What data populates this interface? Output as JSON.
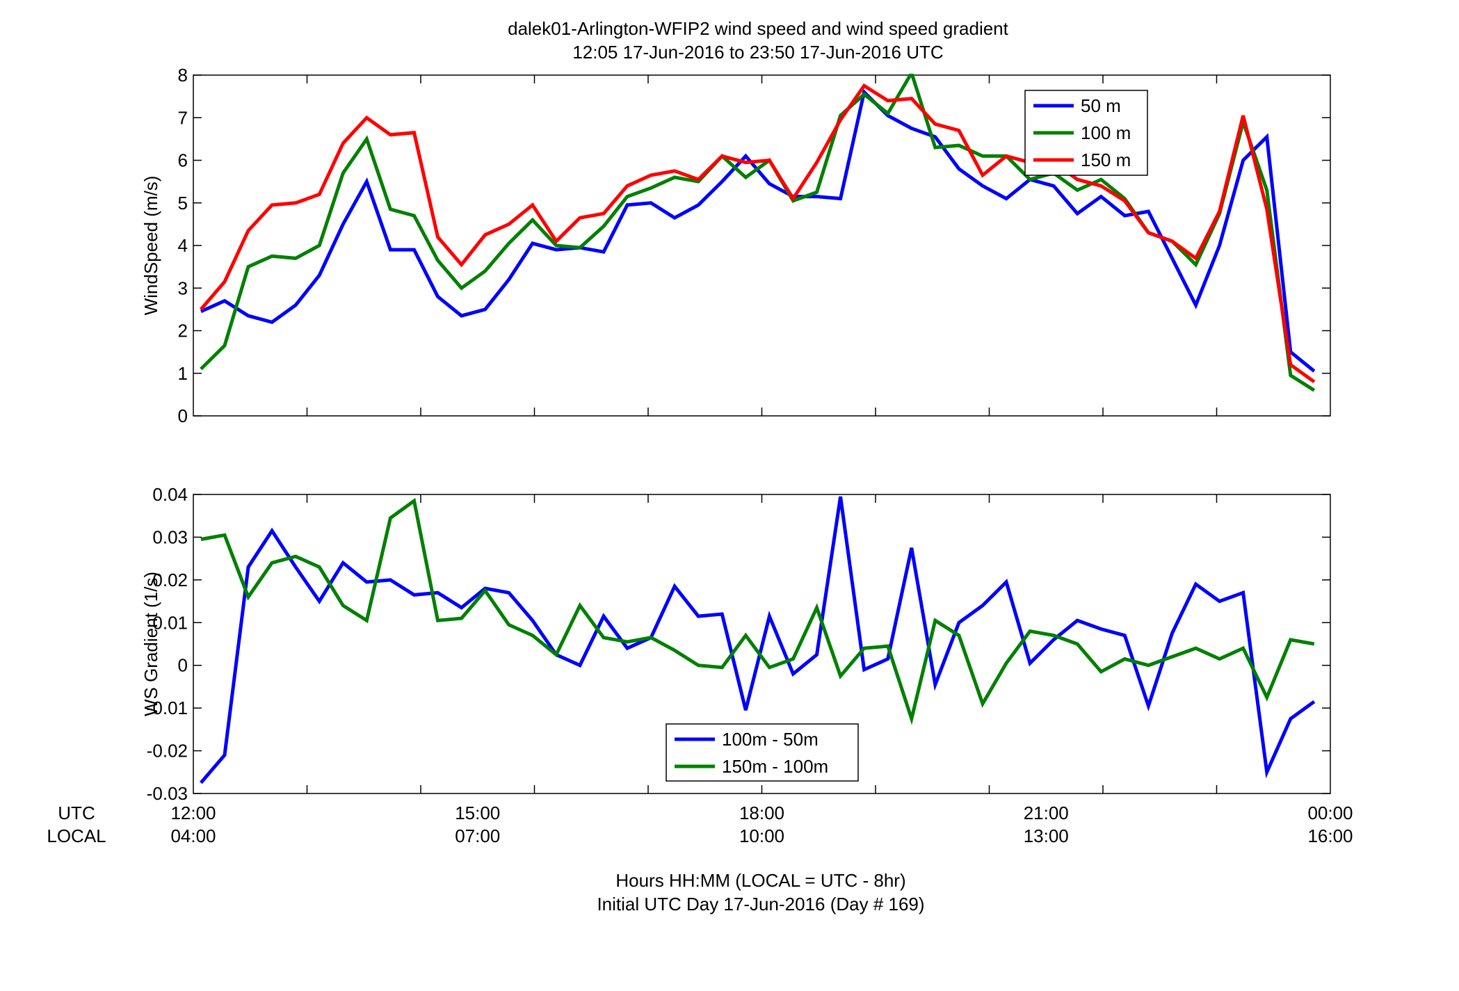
{
  "figure": {
    "title": "dalek01-Arlington-WFIP2  wind speed and wind speed gradient",
    "subtitle": "12:05 17-Jun-2016 to 23:50 17-Jun-2016  UTC",
    "row_label_utc": "UTC",
    "row_label_local": "LOCAL",
    "xlabel_line1": "Hours HH:MM  (LOCAL = UTC - 8hr)",
    "xlabel_line2": "Initial UTC Day 17-Jun-2016 (Day # 169)",
    "utc_ticks": [
      "12:00",
      "15:00",
      "18:00",
      "21:00",
      "00:00"
    ],
    "local_ticks": [
      "04:00",
      "07:00",
      "10:00",
      "13:00",
      "16:00"
    ]
  },
  "chart_data": [
    {
      "type": "line",
      "ylabel": "WindSpeed (m/s)",
      "xlim": [
        12.0,
        24.0
      ],
      "ylim": [
        0,
        8
      ],
      "yticks": [
        0,
        1,
        2,
        3,
        4,
        5,
        6,
        7,
        8
      ],
      "x_minor_ticks_hours": 1.2,
      "legend_position": "top-right",
      "x": [
        12.08,
        12.33,
        12.58,
        12.83,
        13.08,
        13.33,
        13.58,
        13.83,
        14.08,
        14.33,
        14.58,
        14.83,
        15.08,
        15.33,
        15.58,
        15.83,
        16.08,
        16.33,
        16.58,
        16.83,
        17.08,
        17.33,
        17.58,
        17.83,
        18.08,
        18.33,
        18.58,
        18.83,
        19.08,
        19.33,
        19.58,
        19.83,
        20.08,
        20.33,
        20.58,
        20.83,
        21.08,
        21.33,
        21.58,
        21.83,
        22.08,
        22.33,
        22.58,
        22.83,
        23.08,
        23.33,
        23.58,
        23.83
      ],
      "series": [
        {
          "name": "50 m",
          "color": "#0000ff",
          "values": [
            2.45,
            2.7,
            2.35,
            2.2,
            2.6,
            3.3,
            4.5,
            5.5,
            3.9,
            3.9,
            2.8,
            2.35,
            2.5,
            3.2,
            4.05,
            3.9,
            3.95,
            3.85,
            4.95,
            5.0,
            4.65,
            4.95,
            5.5,
            6.1,
            5.45,
            5.15,
            5.15,
            5.1,
            7.6,
            7.05,
            6.75,
            6.55,
            5.8,
            5.4,
            5.1,
            5.55,
            5.4,
            4.75,
            5.15,
            4.7,
            4.8,
            3.7,
            2.6,
            4.0,
            6.0,
            6.55,
            1.5,
            1.05
          ]
        },
        {
          "name": "100 m",
          "color": "#008000",
          "values": [
            1.1,
            1.65,
            3.5,
            3.75,
            3.7,
            4.0,
            5.7,
            6.5,
            4.85,
            4.7,
            3.65,
            3.0,
            3.4,
            4.05,
            4.6,
            4.0,
            3.95,
            4.45,
            5.15,
            5.35,
            5.6,
            5.5,
            6.1,
            5.6,
            6.0,
            5.05,
            5.25,
            7.05,
            7.55,
            7.1,
            8.05,
            6.3,
            6.35,
            6.1,
            6.1,
            5.55,
            5.7,
            5.3,
            5.55,
            5.1,
            4.3,
            4.1,
            3.55,
            4.75,
            6.9,
            5.3,
            0.95,
            0.6
          ]
        },
        {
          "name": "150 m",
          "color": "#ff0000",
          "values": [
            2.5,
            3.15,
            4.35,
            4.95,
            5.0,
            5.2,
            6.4,
            7.0,
            6.6,
            6.65,
            4.2,
            3.55,
            4.25,
            4.5,
            4.95,
            4.1,
            4.65,
            4.75,
            5.4,
            5.65,
            5.75,
            5.55,
            6.1,
            5.95,
            6.0,
            5.1,
            5.95,
            6.95,
            7.75,
            7.4,
            7.45,
            6.85,
            6.7,
            5.65,
            6.1,
            5.95,
            5.95,
            5.55,
            5.4,
            5.05,
            4.3,
            4.1,
            3.7,
            4.8,
            7.05,
            4.85,
            1.2,
            0.8
          ]
        }
      ]
    },
    {
      "type": "line",
      "ylabel": "WS Gradient (1/s)",
      "xlim": [
        12.0,
        24.0
      ],
      "ylim": [
        -0.03,
        0.04
      ],
      "yticks": [
        -0.03,
        -0.02,
        -0.01,
        0,
        0.01,
        0.02,
        0.03,
        0.04
      ],
      "ytick_labels": [
        "-0.03",
        "-0.02",
        "-0.01",
        "0",
        "0.01",
        "0.02",
        "0.03",
        "0.04"
      ],
      "x_minor_ticks_hours": 1.2,
      "legend_position": "bottom-center",
      "x": [
        12.08,
        12.33,
        12.58,
        12.83,
        13.08,
        13.33,
        13.58,
        13.83,
        14.08,
        14.33,
        14.58,
        14.83,
        15.08,
        15.33,
        15.58,
        15.83,
        16.08,
        16.33,
        16.58,
        16.83,
        17.08,
        17.33,
        17.58,
        17.83,
        18.08,
        18.33,
        18.58,
        18.83,
        19.08,
        19.33,
        19.58,
        19.83,
        20.08,
        20.33,
        20.58,
        20.83,
        21.08,
        21.33,
        21.58,
        21.83,
        22.08,
        22.33,
        22.58,
        22.83,
        23.08,
        23.33,
        23.58,
        23.83
      ],
      "series": [
        {
          "name": "100m - 50m",
          "color": "#0000ff",
          "values": [
            -0.0275,
            -0.021,
            0.023,
            0.0315,
            0.023,
            0.015,
            0.024,
            0.0195,
            0.02,
            0.0165,
            0.017,
            0.0135,
            0.018,
            0.017,
            0.0105,
            0.0025,
            0.0,
            0.0115,
            0.004,
            0.0065,
            0.0185,
            0.0115,
            0.012,
            -0.0105,
            0.0115,
            -0.002,
            0.0025,
            0.0395,
            -0.001,
            0.0015,
            0.0275,
            -0.0045,
            0.01,
            0.014,
            0.0195,
            0.0005,
            0.006,
            0.0105,
            0.0085,
            0.007,
            -0.0095,
            0.0075,
            0.019,
            0.015,
            0.017,
            -0.025,
            -0.0125,
            -0.0085
          ]
        },
        {
          "name": "150m - 100m",
          "color": "#008000",
          "values": [
            0.0295,
            0.0305,
            0.016,
            0.024,
            0.0255,
            0.023,
            0.014,
            0.0105,
            0.0345,
            0.0385,
            0.0105,
            0.011,
            0.0175,
            0.0095,
            0.007,
            0.0025,
            0.014,
            0.0065,
            0.0055,
            0.0065,
            0.0035,
            0.0,
            -0.0005,
            0.007,
            -0.0005,
            0.0015,
            0.0135,
            -0.0025,
            0.004,
            0.0045,
            -0.0125,
            0.0105,
            0.007,
            -0.009,
            0.0005,
            0.008,
            0.007,
            0.005,
            -0.0015,
            0.0015,
            0.0,
            0.002,
            0.004,
            0.0015,
            0.004,
            -0.0075,
            0.006,
            0.005
          ]
        }
      ]
    }
  ]
}
